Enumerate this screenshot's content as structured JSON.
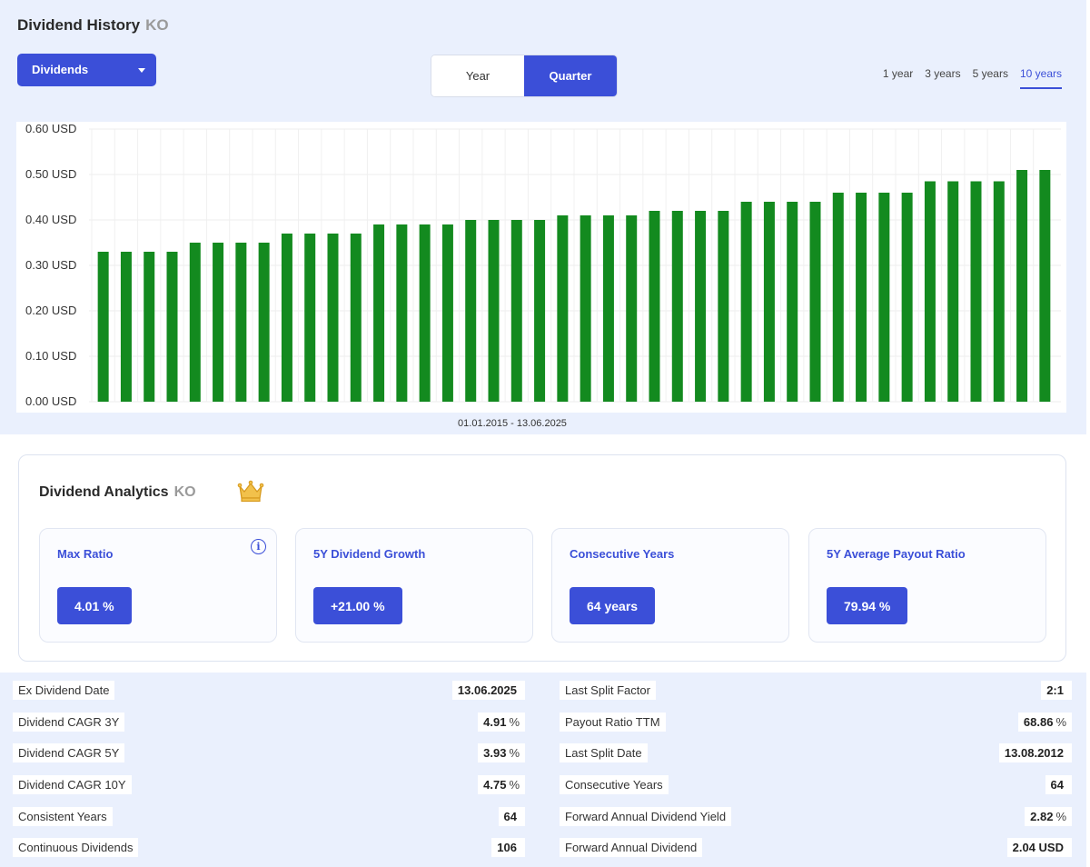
{
  "header": {
    "title": "Dividend History",
    "ticker": "KO"
  },
  "dropdown": {
    "label": "Dividends"
  },
  "toggle": {
    "year": "Year",
    "quarter": "Quarter",
    "selected": "Quarter"
  },
  "ranges": [
    {
      "label": "1 year",
      "active": false
    },
    {
      "label": "3 years",
      "active": false
    },
    {
      "label": "5 years",
      "active": false
    },
    {
      "label": "10 years",
      "active": true
    }
  ],
  "chart_data": {
    "type": "bar",
    "ylim": [
      0,
      0.6
    ],
    "yticks": [
      "0.00 USD",
      "0.10 USD",
      "0.20 USD",
      "0.30 USD",
      "0.40 USD",
      "0.50 USD",
      "0.60 USD"
    ],
    "xlabel": "01.01.2015 - 13.06.2025",
    "color": "#138a1f",
    "values": [
      0.33,
      0.33,
      0.33,
      0.33,
      0.35,
      0.35,
      0.35,
      0.35,
      0.37,
      0.37,
      0.37,
      0.37,
      0.39,
      0.39,
      0.39,
      0.39,
      0.4,
      0.4,
      0.4,
      0.4,
      0.41,
      0.41,
      0.41,
      0.41,
      0.42,
      0.42,
      0.42,
      0.42,
      0.44,
      0.44,
      0.44,
      0.44,
      0.46,
      0.46,
      0.46,
      0.46,
      0.485,
      0.485,
      0.485,
      0.485,
      0.51,
      0.51
    ]
  },
  "analytics": {
    "title": "Dividend Analytics",
    "ticker": "KO",
    "cards": [
      {
        "label": "Max Ratio",
        "value": "4.01 %"
      },
      {
        "label": "5Y Dividend Growth",
        "value": "+21.00 %"
      },
      {
        "label": "Consecutive Years",
        "value": "64 years"
      },
      {
        "label": "5Y Average Payout Ratio",
        "value": "79.94 %"
      }
    ]
  },
  "stats": {
    "left": [
      {
        "key": "Ex Dividend Date",
        "value": "13.06.2025",
        "unit": ""
      },
      {
        "key": "Dividend CAGR 3Y",
        "value": "4.91",
        "unit": "%"
      },
      {
        "key": "Dividend CAGR 5Y",
        "value": "3.93",
        "unit": "%"
      },
      {
        "key": "Dividend CAGR 10Y",
        "value": "4.75",
        "unit": "%"
      },
      {
        "key": "Consistent Years",
        "value": "64",
        "unit": ""
      },
      {
        "key": "Continuous Dividends",
        "value": "106",
        "unit": ""
      }
    ],
    "right": [
      {
        "key": "Last Split Factor",
        "value": "2:1",
        "unit": ""
      },
      {
        "key": "Payout Ratio TTM",
        "value": "68.86",
        "unit": "%"
      },
      {
        "key": "Last Split Date",
        "value": "13.08.2012",
        "unit": ""
      },
      {
        "key": "Consecutive Years",
        "value": "64",
        "unit": ""
      },
      {
        "key": "Forward Annual Dividend Yield",
        "value": "2.82",
        "unit": "%"
      },
      {
        "key": "Forward Annual Dividend",
        "value": "2.04 USD",
        "unit": ""
      }
    ]
  }
}
